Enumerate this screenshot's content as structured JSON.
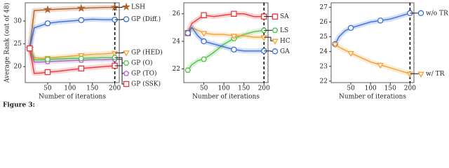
{
  "chart_data": [
    {
      "type": "line",
      "ylabel": "Average Rank (out of 48)",
      "xlabel": "Number of iterations",
      "x": [
        10,
        20,
        35,
        50,
        75,
        100,
        125,
        150,
        175,
        200
      ],
      "xlim": [
        0,
        210
      ],
      "xticks": [
        50,
        100,
        150,
        200
      ],
      "ylim": [
        16.5,
        34
      ],
      "yticks": [
        20,
        25,
        30
      ],
      "vline": 200,
      "series": [
        {
          "name": "LSH",
          "color": "#b0602a",
          "marker": "star",
          "values": [
            24,
            32.3,
            32.4,
            32.5,
            32.6,
            32.7,
            32.8,
            32.9,
            33,
            33
          ]
        },
        {
          "name": "GP (Diff.)",
          "color": "#3a6fd8",
          "marker": "circle",
          "values": [
            24,
            28.5,
            29,
            29.5,
            29.8,
            30,
            30.2,
            30.4,
            30.3,
            30.3
          ]
        },
        {
          "name": "GP (HED)",
          "color": "#f5a030",
          "marker": "triangle",
          "values": [
            24,
            22,
            21.8,
            21.9,
            22.1,
            22.3,
            22.5,
            22.7,
            22.8,
            23
          ]
        },
        {
          "name": "GP (TO)",
          "color": "#b45fd6",
          "marker": "pentagon",
          "values": [
            24,
            21,
            21,
            21.1,
            21.2,
            21.3,
            21.4,
            21.5,
            21.5,
            21.6
          ]
        },
        {
          "name": "GP (O)",
          "color": "#55c04a",
          "marker": "hexagon",
          "values": [
            24,
            21.5,
            21.5,
            21.6,
            21.7,
            21.8,
            21.8,
            21.9,
            22,
            22
          ]
        },
        {
          "name": "GP (SSK)",
          "color": "#e8383d",
          "marker": "square",
          "values": [
            24,
            18.5,
            18.6,
            18.8,
            19,
            19.3,
            19.6,
            19.8,
            20,
            20.2
          ]
        }
      ]
    },
    {
      "type": "line",
      "xlabel": "Number of iterations",
      "x": [
        10,
        20,
        35,
        50,
        75,
        100,
        125,
        150,
        175,
        200
      ],
      "xlim": [
        0,
        210
      ],
      "xticks": [
        50,
        100,
        150,
        200
      ],
      "ylim": [
        21,
        26.8
      ],
      "yticks": [
        22,
        24,
        26
      ],
      "vline": 200,
      "series": [
        {
          "name": "SA",
          "color": "#e8383d",
          "marker": "square",
          "values": [
            24.6,
            25.3,
            25.6,
            25.9,
            25.8,
            25.9,
            26,
            26,
            25.8,
            25.8
          ]
        },
        {
          "name": "LS",
          "color": "#55c04a",
          "marker": "hexagon",
          "values": [
            21.9,
            22.3,
            22.6,
            22.7,
            23.2,
            23.8,
            24.2,
            24.5,
            24.7,
            24.8
          ]
        },
        {
          "name": "HC",
          "color": "#f5a030",
          "marker": "triangle",
          "values": [
            24.6,
            25,
            24.8,
            24.6,
            24.5,
            24.5,
            24.4,
            24.4,
            24.3,
            24.3
          ]
        },
        {
          "name": "GA",
          "color": "#3a6fd8",
          "marker": "circle",
          "values": [
            24.6,
            25,
            24.4,
            24,
            23.8,
            23.6,
            23.4,
            23.3,
            23.3,
            23.3
          ]
        }
      ]
    },
    {
      "type": "line",
      "xlabel": "Number of iterations",
      "x": [
        10,
        20,
        35,
        50,
        75,
        100,
        125,
        150,
        175,
        200
      ],
      "xlim": [
        0,
        210
      ],
      "xticks": [
        50,
        100,
        150,
        200
      ],
      "ylim": [
        21.9,
        27.3
      ],
      "yticks": [
        22,
        23,
        24,
        25,
        26,
        27
      ],
      "vline": 200,
      "series": [
        {
          "name": "w/o TR",
          "color": "#3a6fd8",
          "marker": "circle",
          "values": [
            24.5,
            25,
            25.4,
            25.6,
            25.8,
            26,
            26.1,
            26.2,
            26.4,
            26.6
          ]
        },
        {
          "name": "w/ TR",
          "color": "#f5a030",
          "marker": "triangle",
          "values": [
            24.5,
            24.3,
            24.1,
            23.9,
            23.6,
            23.3,
            23.1,
            22.9,
            22.7,
            22.5
          ]
        }
      ]
    }
  ],
  "caption": "Figure 3:"
}
